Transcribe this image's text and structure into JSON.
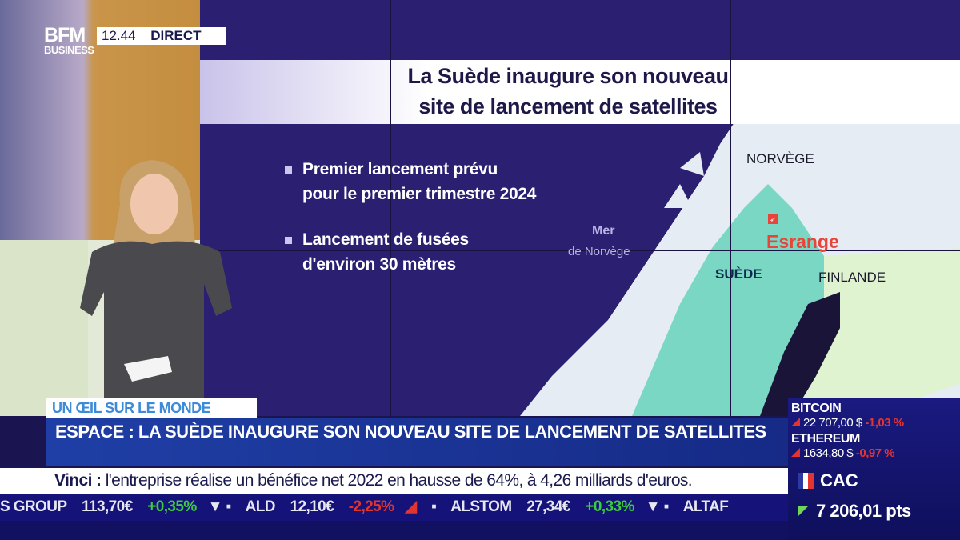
{
  "overlay": {
    "brand_top": "BFM",
    "brand_bottom": "BUSINESS",
    "time": "12.44",
    "live_label": "DIRECT"
  },
  "screen": {
    "title_line1": "La Suède inaugure son nouveau",
    "title_line2": "site de lancement de satellites",
    "bullets": [
      {
        "line1": "Premier lancement prévu",
        "line2": "pour le premier trimestre 2024"
      },
      {
        "line1": "Lancement de fusées",
        "line2": "d'environ 30 mètres"
      }
    ],
    "map": {
      "sea_line1": "Mer",
      "sea_line2": "de Norvège",
      "norway": "NORVÈGE",
      "sweden": "SUÈDE",
      "finland": "FINLANDE",
      "site": "Esrange",
      "site_icon": "rocket-icon",
      "site_color": "#e8443a"
    }
  },
  "lower_third": {
    "tag": "UN ŒIL SUR LE MONDE",
    "headline": "ESPACE : LA SUÈDE INAUGURE SON NOUVEAU SITE DE LANCEMENT DE SATELLITES",
    "news_subject": "Vinci :",
    "news_text": "l'entreprise réalise un bénéfice net 2022 en hausse de 64%, à 4,26 milliards d'euros."
  },
  "stock_ticker": [
    {
      "name": "S GROUP",
      "price": "113,70€",
      "change": "+0,35%",
      "direction": "up"
    },
    {
      "name": "ALD",
      "price": "12,10€",
      "change": "-2,25%",
      "direction": "down"
    },
    {
      "name": "ALSTOM",
      "price": "27,34€",
      "change": "+0,33%",
      "direction": "up"
    },
    {
      "name": "ALTAF",
      "price": "",
      "change": "",
      "direction": ""
    }
  ],
  "markets": {
    "crypto": [
      {
        "name": "BITCOIN",
        "price": "22 707,00 $",
        "change": "-1,03 %"
      },
      {
        "name": "ETHEREUM",
        "price": "1634,80 $",
        "change": "-0,97 %"
      }
    ],
    "index": {
      "flag": "france-flag-icon",
      "name": "CAC",
      "value": "7 206,01 pts",
      "direction": "down"
    }
  },
  "colors": {
    "headline_blue": "#1f3fa6",
    "ticker_navy": "#15137a",
    "up": "#3ccc3c",
    "down": "#e3342f"
  }
}
